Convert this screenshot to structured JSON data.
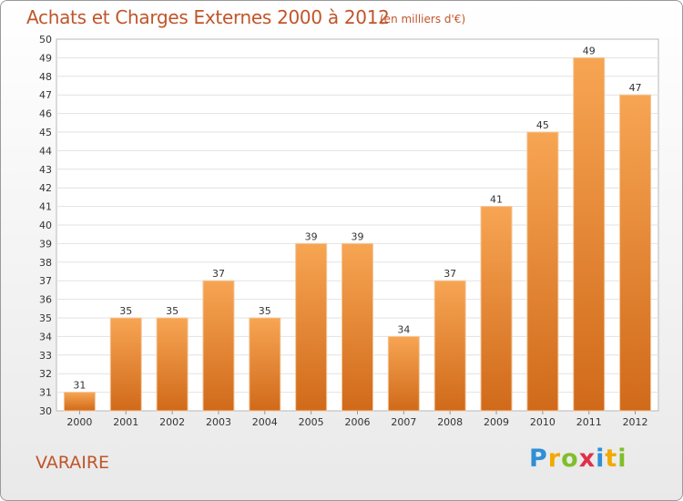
{
  "title": "Achats et Charges Externes 2000 à 2012",
  "subtitle": "(en milliers d'€)",
  "place": "VARAIRE",
  "logo": {
    "letters": [
      {
        "char": "P",
        "color": "#2f8fd6"
      },
      {
        "char": "r",
        "color": "#f2a900"
      },
      {
        "char": "o",
        "color": "#7fbf2a"
      },
      {
        "char": "x",
        "color": "#e0304a"
      },
      {
        "char": "i",
        "color": "#2f8fd6"
      },
      {
        "char": "t",
        "color": "#f2a900"
      },
      {
        "char": "i",
        "color": "#7fbf2a"
      }
    ]
  },
  "chart_data": {
    "type": "bar",
    "title": "Achats et Charges Externes 2000 à 2012",
    "subtitle": "(en milliers d'€)",
    "categories": [
      "2000",
      "2001",
      "2002",
      "2003",
      "2004",
      "2005",
      "2006",
      "2007",
      "2008",
      "2009",
      "2010",
      "2011",
      "2012"
    ],
    "values": [
      31,
      35,
      35,
      37,
      35,
      39,
      39,
      34,
      37,
      41,
      45,
      49,
      47
    ],
    "ylim": [
      30,
      50
    ],
    "yticks": [
      30,
      31,
      32,
      33,
      34,
      35,
      36,
      37,
      38,
      39,
      40,
      41,
      42,
      43,
      44,
      45,
      46,
      47,
      48,
      49,
      50
    ],
    "grid": true,
    "bar_color_top": "#f7a553",
    "bar_color_bottom": "#d06a1a"
  }
}
